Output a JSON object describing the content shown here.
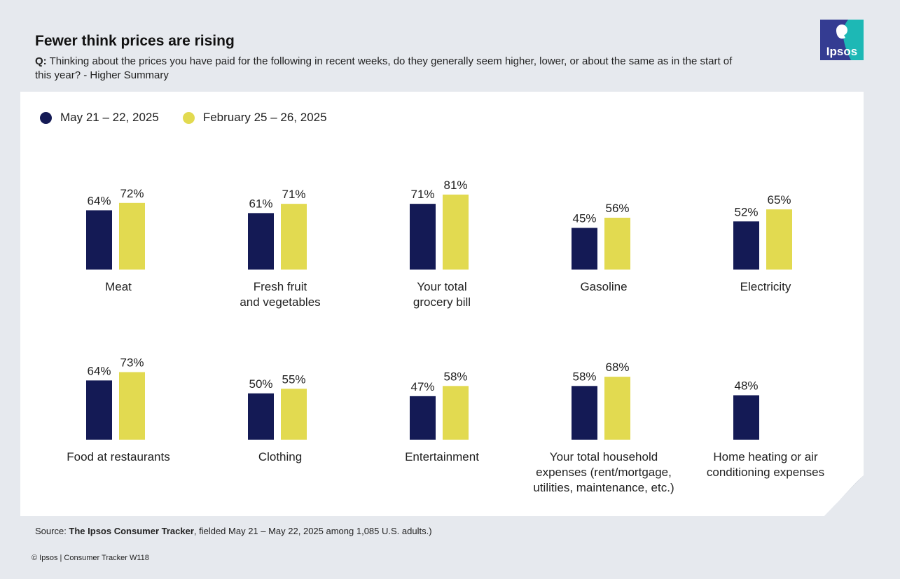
{
  "header": {
    "title": "Fewer think prices are rising",
    "question_prefix": "Q:",
    "question_text": "Thinking about the prices you have paid for the following in recent weeks, do they generally seem higher, lower, or about the same as in the start of this year? - Higher Summary"
  },
  "logo": {
    "text": "Ipsos"
  },
  "colors": {
    "may": "#141a55",
    "feb": "#e2da50",
    "logo": "#1db8b5",
    "logo_dark": "#343c92"
  },
  "chart_data": {
    "type": "bar",
    "title": "Fewer think prices are rising",
    "unit": "%",
    "ylim": [
      0,
      100
    ],
    "series": [
      {
        "name": "May 21 – 22, 2025",
        "values": [
          64,
          61,
          71,
          45,
          52,
          64,
          50,
          47,
          58,
          48
        ]
      },
      {
        "name": "February 25 – 26, 2025",
        "values": [
          72,
          71,
          81,
          56,
          65,
          73,
          55,
          58,
          68,
          null
        ]
      }
    ],
    "categories": [
      "Meat",
      "Fresh fruit\nand vegetables",
      "Your total\ngrocery bill",
      "Gasoline",
      "Electricity",
      "Food at restaurants",
      "Clothing",
      "Entertainment",
      "Your total household\nexpenses (rent/mortgage,\nutilities, maintenance, etc.)",
      "Home heating or air\nconditioning expenses"
    ],
    "data_labels": [
      [
        "64%",
        "61%",
        "71%",
        "45%",
        "52%",
        "64%",
        "50%",
        "47%",
        "58%",
        "48%"
      ],
      [
        "72%",
        "71%",
        "81%",
        "56%",
        "65%",
        "73%",
        "55%",
        "58%",
        "68%",
        null
      ]
    ],
    "layout": "2 rows x 5 columns of small grouped-bar panels",
    "legend_position": "top-left"
  },
  "footer": {
    "source_prefix": "Source: ",
    "source_bold": "The Ipsos Consumer Tracker",
    "source_rest": ", fielded May 21 – May 22, 2025 among 1,085 U.S. adults.)",
    "copyright": "© Ipsos | Consumer Tracker W118"
  }
}
